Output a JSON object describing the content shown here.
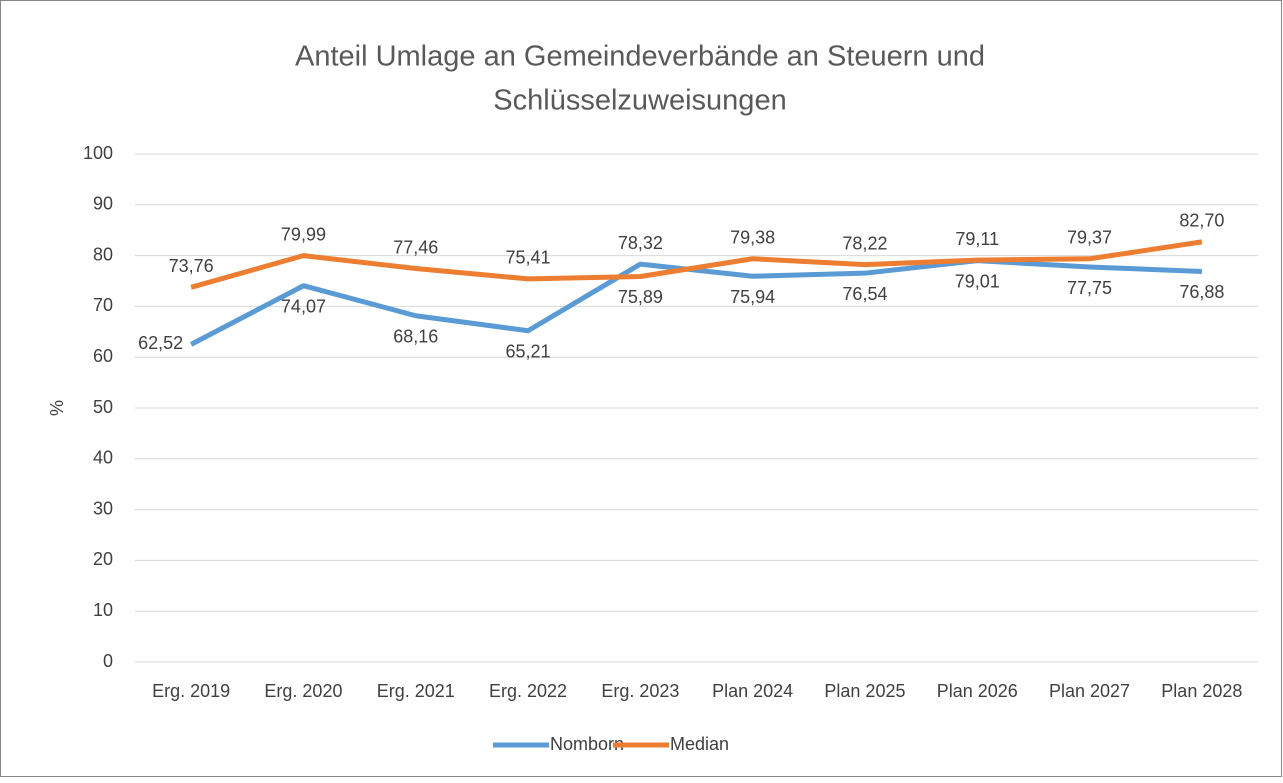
{
  "chart_data": {
    "type": "line",
    "title": [
      "Anteil Umlage an Gemeindeverbände an Steuern und",
      "Schlüsselzuweisungen"
    ],
    "y_label": "%",
    "categories": [
      "Erg. 2019",
      "Erg. 2020",
      "Erg. 2021",
      "Erg. 2022",
      "Erg. 2023",
      "Plan 2024",
      "Plan 2025",
      "Plan 2026",
      "Plan 2027",
      "Plan 2028"
    ],
    "series": [
      {
        "name": "Nomborn",
        "color": "#5b9bd5",
        "values": [
          62.52,
          74.07,
          68.16,
          65.21,
          78.32,
          75.94,
          76.54,
          79.01,
          77.75,
          76.88
        ],
        "value_labels": [
          "62,52",
          "74,07",
          "68,16",
          "65,21",
          "78,32",
          "75,94",
          "76,54",
          "79,01",
          "77,75",
          "76,88"
        ]
      },
      {
        "name": "Median",
        "color": "#ed7d31",
        "values": [
          73.76,
          79.99,
          77.46,
          75.41,
          75.89,
          79.38,
          78.22,
          79.11,
          79.37,
          82.7
        ],
        "value_labels": [
          "73,76",
          "79,99",
          "77,46",
          "75,41",
          "75,89",
          "79,38",
          "78,22",
          "79,11",
          "79,37",
          "82,70"
        ]
      }
    ],
    "ylim": [
      0,
      100
    ],
    "yticks": [
      0,
      10,
      20,
      30,
      40,
      50,
      60,
      70,
      80,
      90,
      100
    ],
    "grid": true,
    "legend": "bottom"
  }
}
